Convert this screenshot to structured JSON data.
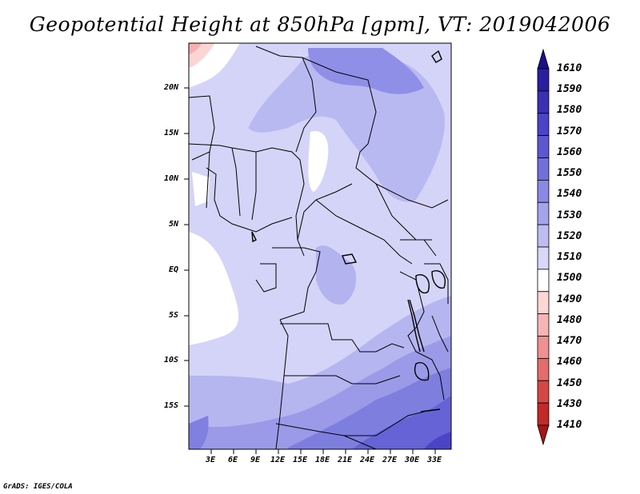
{
  "title": "Geopotential Height at 850hPa [gpm], VT: 2019042006",
  "footer": "GrADS: IGES/COLA",
  "lat_ticks": [
    "20N",
    "15N",
    "10N",
    "5N",
    "EQ",
    "5S",
    "10S",
    "15S"
  ],
  "lon_ticks": [
    "3E",
    "6E",
    "9E",
    "12E",
    "15E",
    "18E",
    "21E",
    "24E",
    "27E",
    "30E",
    "33E"
  ],
  "colorbar": {
    "labels": [
      "1610",
      "1590",
      "1580",
      "1570",
      "1560",
      "1550",
      "1540",
      "1530",
      "1520",
      "1510",
      "1500",
      "1490",
      "1480",
      "1470",
      "1460",
      "1450",
      "1430",
      "1410"
    ],
    "colors": [
      "#1c0f8c",
      "#2a1fa0",
      "#3a30b4",
      "#4b44c6",
      "#5d58d2",
      "#7270dc",
      "#8a89e6",
      "#a3a3ee",
      "#bdbdf4",
      "#d8d8fa",
      "#ffffff",
      "#fdd6d6",
      "#f8b4b4",
      "#f09090",
      "#e46c6c",
      "#d64646",
      "#c22a2a",
      "#a61616"
    ]
  },
  "chart_data": {
    "type": "heatmap",
    "title": "Geopotential Height at 850hPa [gpm], VT: 2019042006",
    "xlabel": "",
    "ylabel": "",
    "x_range": [
      "0E",
      "35E"
    ],
    "y_range": [
      "20S",
      "24N"
    ],
    "x_ticks": [
      "3E",
      "6E",
      "9E",
      "12E",
      "15E",
      "18E",
      "21E",
      "24E",
      "27E",
      "30E",
      "33E"
    ],
    "y_ticks": [
      "20N",
      "15N",
      "10N",
      "5N",
      "EQ",
      "5S",
      "10S",
      "15S"
    ],
    "contour_levels": [
      1410,
      1430,
      1450,
      1460,
      1470,
      1480,
      1490,
      1500,
      1510,
      1520,
      1530,
      1540,
      1550,
      1560,
      1570,
      1580,
      1590,
      1610
    ],
    "dominant_value_range": [
      1500,
      1570
    ],
    "legend_placement": "right"
  }
}
